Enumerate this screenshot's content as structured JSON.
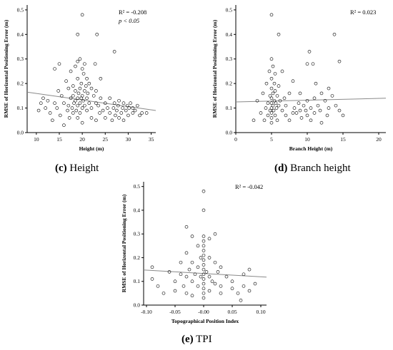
{
  "captions": [
    {
      "letter": "(c)",
      "text": "Height"
    },
    {
      "letter": "(d)",
      "text": "Branch height"
    },
    {
      "letter": "(e)",
      "text": "TPI"
    }
  ],
  "chart_data": [
    {
      "type": "scatter",
      "xlabel": "Height (m)",
      "ylabel": "RMSE of Horizontal Positioning Error (m)",
      "xlim": [
        8,
        36
      ],
      "ylim": [
        0,
        0.52
      ],
      "xticks": [
        10,
        15,
        20,
        25,
        30,
        35
      ],
      "yticks": [
        0.0,
        0.1,
        0.2,
        0.3,
        0.4,
        0.5
      ],
      "grid": false,
      "annotations": [
        "R² = -0.208",
        "p < 0.05"
      ],
      "fit_line": {
        "x": [
          8,
          36
        ],
        "y": [
          0.165,
          0.09
        ]
      },
      "points": [
        [
          10.5,
          0.09
        ],
        [
          11,
          0.12
        ],
        [
          11.5,
          0.14
        ],
        [
          12,
          0.1
        ],
        [
          12.5,
          0.13
        ],
        [
          13,
          0.08
        ],
        [
          13.5,
          0.05
        ],
        [
          14,
          0.26
        ],
        [
          14,
          0.12
        ],
        [
          14.5,
          0.1
        ],
        [
          14.8,
          0.17
        ],
        [
          15,
          0.28
        ],
        [
          15.2,
          0.07
        ],
        [
          15.5,
          0.15
        ],
        [
          16,
          0.12
        ],
        [
          16,
          0.03
        ],
        [
          16.5,
          0.21
        ],
        [
          16.8,
          0.09
        ],
        [
          17,
          0.18
        ],
        [
          17,
          0.11
        ],
        [
          17.2,
          0.06
        ],
        [
          17.5,
          0.14
        ],
        [
          17.5,
          0.25
        ],
        [
          17.8,
          0.1
        ],
        [
          18,
          0.15
        ],
        [
          18,
          0.08
        ],
        [
          18,
          0.19
        ],
        [
          18.2,
          0.12
        ],
        [
          18.5,
          0.27
        ],
        [
          18.5,
          0.13
        ],
        [
          18.5,
          0.17
        ],
        [
          18.7,
          0.09
        ],
        [
          19,
          0.4
        ],
        [
          19,
          0.29
        ],
        [
          19,
          0.22
        ],
        [
          19,
          0.14
        ],
        [
          19,
          0.11
        ],
        [
          19,
          0.06
        ],
        [
          19.2,
          0.16
        ],
        [
          19.5,
          0.3
        ],
        [
          19.5,
          0.18
        ],
        [
          19.5,
          0.12
        ],
        [
          19.5,
          0.08
        ],
        [
          19.8,
          0.2
        ],
        [
          19.8,
          0.14
        ],
        [
          20,
          0.48
        ],
        [
          20,
          0.26
        ],
        [
          20,
          0.15
        ],
        [
          20,
          0.1
        ],
        [
          20,
          0.04
        ],
        [
          20.2,
          0.13
        ],
        [
          20.3,
          0.24
        ],
        [
          20.5,
          0.28
        ],
        [
          20.5,
          0.17
        ],
        [
          20.5,
          0.11
        ],
        [
          20.8,
          0.19
        ],
        [
          21,
          0.22
        ],
        [
          21,
          0.14
        ],
        [
          21,
          0.09
        ],
        [
          21.2,
          0.16
        ],
        [
          21.5,
          0.2
        ],
        [
          21.5,
          0.12
        ],
        [
          22,
          0.18
        ],
        [
          22,
          0.1
        ],
        [
          22,
          0.06
        ],
        [
          22.5,
          0.15
        ],
        [
          22.8,
          0.28
        ],
        [
          23,
          0.17
        ],
        [
          23,
          0.12
        ],
        [
          23,
          0.05
        ],
        [
          23.2,
          0.4
        ],
        [
          23.5,
          0.11
        ],
        [
          23.8,
          0.08
        ],
        [
          24,
          0.14
        ],
        [
          24,
          0.22
        ],
        [
          24.5,
          0.09
        ],
        [
          25,
          0.12
        ],
        [
          25,
          0.06
        ],
        [
          25.5,
          0.1
        ],
        [
          26,
          0.08
        ],
        [
          26,
          0.14
        ],
        [
          26.5,
          0.05
        ],
        [
          26.8,
          0.1
        ],
        [
          27,
          0.33
        ],
        [
          27,
          0.12
        ],
        [
          27.2,
          0.07
        ],
        [
          27.5,
          0.09
        ],
        [
          27.8,
          0.11
        ],
        [
          28,
          0.06
        ],
        [
          28,
          0.13
        ],
        [
          28.5,
          0.08
        ],
        [
          28.8,
          0.1
        ],
        [
          29,
          0.12
        ],
        [
          29,
          0.05
        ],
        [
          29.5,
          0.09
        ],
        [
          29.8,
          0.11
        ],
        [
          30,
          0.07
        ],
        [
          30.2,
          0.1
        ],
        [
          30.5,
          0.12
        ],
        [
          31,
          0.08
        ],
        [
          31,
          0.1
        ],
        [
          31.5,
          0.09
        ],
        [
          32,
          0.11
        ],
        [
          32.5,
          0.07
        ],
        [
          33,
          0.08
        ],
        [
          34,
          0.08
        ]
      ]
    },
    {
      "type": "scatter",
      "xlabel": "Branch Height (m)",
      "ylabel": "RMSE of Horizontal Positioning Error (m)",
      "xlim": [
        0,
        21
      ],
      "ylim": [
        0,
        0.52
      ],
      "xticks": [
        0,
        5,
        10,
        15,
        20
      ],
      "yticks": [
        0.0,
        0.1,
        0.2,
        0.3,
        0.4,
        0.5
      ],
      "grid": false,
      "annotations": [
        "R² = 0.023"
      ],
      "fit_line": {
        "x": [
          0,
          21
        ],
        "y": [
          0.125,
          0.14
        ]
      },
      "points": [
        [
          2.5,
          0.05
        ],
        [
          3,
          0.13
        ],
        [
          3.5,
          0.08
        ],
        [
          3.8,
          0.16
        ],
        [
          4,
          0.05
        ],
        [
          4.2,
          0.1
        ],
        [
          4.3,
          0.2
        ],
        [
          4.5,
          0.12
        ],
        [
          4.5,
          0.07
        ],
        [
          4.7,
          0.25
        ],
        [
          4.8,
          0.15
        ],
        [
          4.8,
          0.09
        ],
        [
          5,
          0.48
        ],
        [
          5,
          0.3
        ],
        [
          5,
          0.22
        ],
        [
          5,
          0.18
        ],
        [
          5,
          0.14
        ],
        [
          5,
          0.12
        ],
        [
          5,
          0.1
        ],
        [
          5,
          0.08
        ],
        [
          5,
          0.06
        ],
        [
          5,
          0.04
        ],
        [
          5.2,
          0.27
        ],
        [
          5.2,
          0.16
        ],
        [
          5.2,
          0.11
        ],
        [
          5.3,
          0.09
        ],
        [
          5.4,
          0.2
        ],
        [
          5.4,
          0.13
        ],
        [
          5.5,
          0.07
        ],
        [
          5.5,
          0.17
        ],
        [
          5.5,
          0.24
        ],
        [
          5.6,
          0.12
        ],
        [
          5.7,
          0.1
        ],
        [
          5.8,
          0.15
        ],
        [
          5.8,
          0.05
        ],
        [
          6,
          0.4
        ],
        [
          6,
          0.19
        ],
        [
          6,
          0.11
        ],
        [
          6.2,
          0.13
        ],
        [
          6.5,
          0.09
        ],
        [
          6.5,
          0.25
        ],
        [
          6.8,
          0.14
        ],
        [
          7,
          0.07
        ],
        [
          7,
          0.11
        ],
        [
          7.5,
          0.05
        ],
        [
          7.5,
          0.16
        ],
        [
          8,
          0.08
        ],
        [
          8,
          0.21
        ],
        [
          8.2,
          0.1
        ],
        [
          8.5,
          0.08
        ],
        [
          8.8,
          0.12
        ],
        [
          9,
          0.09
        ],
        [
          9,
          0.16
        ],
        [
          9.2,
          0.06
        ],
        [
          9.5,
          0.11
        ],
        [
          9.8,
          0.09
        ],
        [
          10,
          0.28
        ],
        [
          10,
          0.13
        ],
        [
          10,
          0.07
        ],
        [
          10.3,
          0.33
        ],
        [
          10.5,
          0.1
        ],
        [
          10.5,
          0.05
        ],
        [
          10.8,
          0.28
        ],
        [
          11,
          0.14
        ],
        [
          11,
          0.08
        ],
        [
          11.2,
          0.2
        ],
        [
          11.5,
          0.11
        ],
        [
          11.8,
          0.09
        ],
        [
          12,
          0.16
        ],
        [
          12,
          0.04
        ],
        [
          12.5,
          0.13
        ],
        [
          12.8,
          0.07
        ],
        [
          13,
          0.18
        ],
        [
          13,
          0.1
        ],
        [
          13.5,
          0.15
        ],
        [
          13.8,
          0.4
        ],
        [
          14,
          0.11
        ],
        [
          14.5,
          0.29
        ],
        [
          14.5,
          0.09
        ],
        [
          15,
          0.07
        ]
      ]
    },
    {
      "type": "scatter",
      "xlabel": "Topographical Position Index",
      "ylabel": "RMSE of Horizontal Positioning Error (m)",
      "xlim": [
        -0.105,
        0.11
      ],
      "ylim": [
        0,
        0.52
      ],
      "xticks": [
        -0.1,
        -0.05,
        0.0,
        0.05,
        0.1
      ],
      "xticklabels": [
        "-0.10",
        "-0.05",
        "-0.00",
        "0.05",
        "0.10"
      ],
      "yticks": [
        0.0,
        0.1,
        0.2,
        0.3,
        0.4,
        0.5
      ],
      "grid": false,
      "annotations": [
        "R² = -0.042"
      ],
      "fit_line": {
        "x": [
          -0.105,
          0.11
        ],
        "y": [
          0.148,
          0.118
        ]
      },
      "points": [
        [
          -0.09,
          0.11
        ],
        [
          -0.09,
          0.16
        ],
        [
          -0.08,
          0.08
        ],
        [
          -0.07,
          0.05
        ],
        [
          -0.06,
          0.14
        ],
        [
          -0.05,
          0.1
        ],
        [
          -0.05,
          0.06
        ],
        [
          -0.04,
          0.13
        ],
        [
          -0.04,
          0.18
        ],
        [
          -0.035,
          0.08
        ],
        [
          -0.03,
          0.33
        ],
        [
          -0.03,
          0.22
        ],
        [
          -0.03,
          0.12
        ],
        [
          -0.03,
          0.05
        ],
        [
          -0.025,
          0.15
        ],
        [
          -0.02,
          0.29
        ],
        [
          -0.02,
          0.18
        ],
        [
          -0.02,
          0.1
        ],
        [
          -0.02,
          0.04
        ],
        [
          -0.015,
          0.13
        ],
        [
          -0.01,
          0.25
        ],
        [
          -0.01,
          0.16
        ],
        [
          -0.01,
          0.08
        ],
        [
          -0.005,
          0.2
        ],
        [
          -0.005,
          0.12
        ],
        [
          0,
          0.48
        ],
        [
          0,
          0.4
        ],
        [
          0,
          0.29
        ],
        [
          0,
          0.27
        ],
        [
          0,
          0.25
        ],
        [
          0,
          0.23
        ],
        [
          0,
          0.21
        ],
        [
          0,
          0.19
        ],
        [
          0,
          0.17
        ],
        [
          0,
          0.15
        ],
        [
          0,
          0.13
        ],
        [
          0,
          0.11
        ],
        [
          0,
          0.09
        ],
        [
          0,
          0.07
        ],
        [
          0,
          0.05
        ],
        [
          0,
          0.03
        ],
        [
          0.005,
          0.14
        ],
        [
          0.01,
          0.28
        ],
        [
          0.01,
          0.2
        ],
        [
          0.01,
          0.12
        ],
        [
          0.01,
          0.06
        ],
        [
          0.015,
          0.1
        ],
        [
          0.02,
          0.3
        ],
        [
          0.02,
          0.18
        ],
        [
          0.02,
          0.09
        ],
        [
          0.025,
          0.14
        ],
        [
          0.03,
          0.16
        ],
        [
          0.03,
          0.08
        ],
        [
          0.03,
          0.05
        ],
        [
          0.04,
          0.12
        ],
        [
          0.05,
          0.07
        ],
        [
          0.05,
          0.1
        ],
        [
          0.06,
          0.05
        ],
        [
          0.065,
          0.02
        ],
        [
          0.07,
          0.13
        ],
        [
          0.07,
          0.08
        ],
        [
          0.08,
          0.06
        ],
        [
          0.08,
          0.15
        ],
        [
          0.09,
          0.09
        ]
      ]
    }
  ]
}
